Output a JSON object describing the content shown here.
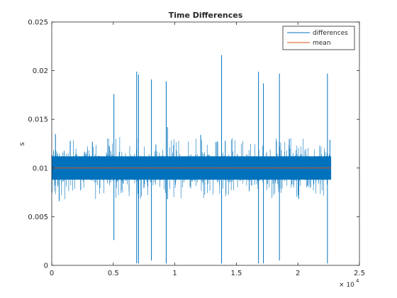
{
  "chart_data": {
    "type": "line",
    "title": "Time Differences",
    "xlabel": "",
    "ylabel": "s",
    "x_exponent_label": "× 10",
    "x_exponent_power": "4",
    "xlim": [
      0,
      25000
    ],
    "ylim": [
      0,
      0.025
    ],
    "x_ticks": [
      0,
      5000,
      10000,
      15000,
      20000,
      25000
    ],
    "x_tick_labels": [
      "0",
      "0.5",
      "1",
      "1.5",
      "2",
      "2.5"
    ],
    "y_ticks": [
      0,
      0.005,
      0.01,
      0.015,
      0.02,
      0.025
    ],
    "y_tick_labels": [
      "0",
      "0.005",
      "0.01",
      "0.015",
      "0.02",
      "0.025"
    ],
    "grid": false,
    "legend_position": "top-right",
    "series": [
      {
        "name": "differences",
        "color": "#0072BD",
        "x_range": [
          1,
          22700
        ],
        "baseline": 0.01,
        "typical_band": [
          0.0088,
          0.0112
        ],
        "spikes": [
          {
            "x": 300,
            "y": 0.0135
          },
          {
            "x": 600,
            "y": 0.0066
          },
          {
            "x": 1500,
            "y": 0.0128
          },
          {
            "x": 3300,
            "y": 0.0127
          },
          {
            "x": 5050,
            "y": 0.0176
          },
          {
            "x": 5050,
            "y": 0.0026
          },
          {
            "x": 6900,
            "y": 0.0199
          },
          {
            "x": 6900,
            "y": 0.0002
          },
          {
            "x": 7050,
            "y": 0.0196
          },
          {
            "x": 7050,
            "y": 0.0002
          },
          {
            "x": 8100,
            "y": 0.0191
          },
          {
            "x": 8100,
            "y": 0.0005
          },
          {
            "x": 9300,
            "y": 0.0189
          },
          {
            "x": 9300,
            "y": 0.0002
          },
          {
            "x": 9400,
            "y": 0.0142
          },
          {
            "x": 9400,
            "y": 0.0068
          },
          {
            "x": 12100,
            "y": 0.0134
          },
          {
            "x": 13800,
            "y": 0.0216
          },
          {
            "x": 13800,
            "y": 0.0002
          },
          {
            "x": 14100,
            "y": 0.0128
          },
          {
            "x": 16800,
            "y": 0.0199
          },
          {
            "x": 16800,
            "y": 0.0002
          },
          {
            "x": 17200,
            "y": 0.0187
          },
          {
            "x": 17200,
            "y": 0.0002
          },
          {
            "x": 18500,
            "y": 0.0197
          },
          {
            "x": 18500,
            "y": 0.0005
          },
          {
            "x": 19300,
            "y": 0.013
          },
          {
            "x": 22400,
            "y": 0.0197
          },
          {
            "x": 22400,
            "y": 0.0002
          },
          {
            "x": 22600,
            "y": 0.0129
          }
        ]
      },
      {
        "name": "mean",
        "color": "#D95319",
        "x_range": [
          1,
          22700
        ],
        "value": 0.01
      }
    ]
  }
}
